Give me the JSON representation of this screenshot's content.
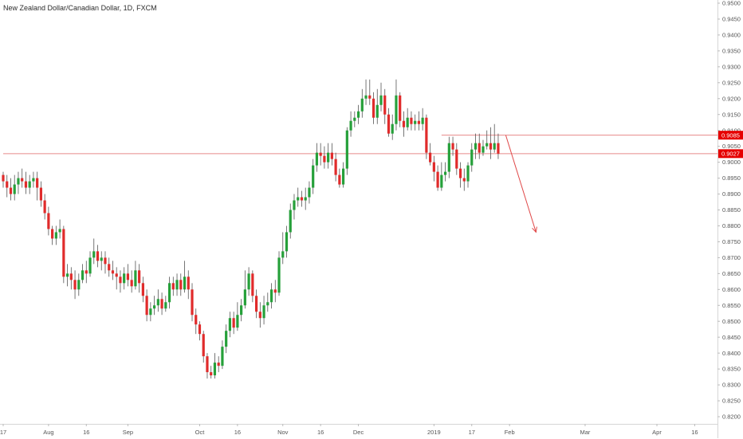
{
  "symbol": {
    "title": "New Zealand Dollar/Canadian Dollar, 1D, FXCM"
  },
  "colors": {
    "up": "#26a03a",
    "down": "#e02b2b",
    "wick": "#555555",
    "hline": "#e88a8a",
    "badge": "#e60000",
    "arrow": "#e04848"
  },
  "price_axis": {
    "labels": [
      "0.9500",
      "0.9450",
      "0.9400",
      "0.9350",
      "0.9300",
      "0.9250",
      "0.9200",
      "0.9150",
      "0.9100",
      "0.9050",
      "0.9000",
      "0.8950",
      "0.8900",
      "0.8850",
      "0.8800",
      "0.8750",
      "0.8700",
      "0.8650",
      "0.8600",
      "0.8550",
      "0.8500",
      "0.8450",
      "0.8400",
      "0.8350",
      "0.8300",
      "0.8250",
      "0.8200"
    ]
  },
  "time_axis": {
    "labels": [
      "17",
      "Aug",
      "16",
      "Sep",
      "Oct",
      "16",
      "Nov",
      "16",
      "Dec",
      "2019",
      "17",
      "Feb",
      "Mar",
      "Apr",
      "16"
    ]
  },
  "price_badges": {
    "resistance": "0.9085",
    "current": "0.9027"
  },
  "chart_data": {
    "type": "candlestick",
    "title": "New Zealand Dollar/Canadian Dollar, 1D, FXCM",
    "ylim": [
      0.818,
      0.952
    ],
    "grid": false,
    "time_ticks": [
      {
        "label": "17",
        "index": 0
      },
      {
        "label": "Aug",
        "index": 12
      },
      {
        "label": "16",
        "index": 22
      },
      {
        "label": "Sep",
        "index": 33
      },
      {
        "label": "Oct",
        "index": 52
      },
      {
        "label": "16",
        "index": 62
      },
      {
        "label": "Nov",
        "index": 74
      },
      {
        "label": "16",
        "index": 84
      },
      {
        "label": "Dec",
        "index": 94
      },
      {
        "label": "2019",
        "index": 114
      },
      {
        "label": "17",
        "index": 124
      },
      {
        "label": "Feb",
        "index": 134
      },
      {
        "label": "Mar",
        "index": 154
      },
      {
        "label": "Apr",
        "index": 173
      },
      {
        "label": "16",
        "index": 183
      }
    ],
    "candles": [
      [
        0.896,
        0.894,
        0.897,
        0.892
      ],
      [
        0.894,
        0.892,
        0.896,
        0.889
      ],
      [
        0.892,
        0.89,
        0.895,
        0.888
      ],
      [
        0.89,
        0.893,
        0.896,
        0.888
      ],
      [
        0.893,
        0.895,
        0.897,
        0.89
      ],
      [
        0.895,
        0.894,
        0.898,
        0.892
      ],
      [
        0.894,
        0.892,
        0.897,
        0.89
      ],
      [
        0.892,
        0.894,
        0.896,
        0.89
      ],
      [
        0.894,
        0.895,
        0.897,
        0.892
      ],
      [
        0.895,
        0.892,
        0.897,
        0.888
      ],
      [
        0.892,
        0.888,
        0.894,
        0.886
      ],
      [
        0.888,
        0.884,
        0.89,
        0.882
      ],
      [
        0.884,
        0.879,
        0.886,
        0.877
      ],
      [
        0.879,
        0.876,
        0.88,
        0.874
      ],
      [
        0.876,
        0.878,
        0.88,
        0.874
      ],
      [
        0.878,
        0.879,
        0.882,
        0.876
      ],
      [
        0.879,
        0.864,
        0.88,
        0.862
      ],
      [
        0.864,
        0.865,
        0.868,
        0.861
      ],
      [
        0.865,
        0.863,
        0.867,
        0.86
      ],
      [
        0.863,
        0.86,
        0.866,
        0.857
      ],
      [
        0.86,
        0.863,
        0.865,
        0.858
      ],
      [
        0.863,
        0.866,
        0.868,
        0.862
      ],
      [
        0.866,
        0.865,
        0.869,
        0.862
      ],
      [
        0.865,
        0.87,
        0.872,
        0.864
      ],
      [
        0.87,
        0.872,
        0.876,
        0.868
      ],
      [
        0.872,
        0.869,
        0.874,
        0.867
      ],
      [
        0.869,
        0.87,
        0.872,
        0.866
      ],
      [
        0.87,
        0.868,
        0.872,
        0.865
      ],
      [
        0.868,
        0.866,
        0.87,
        0.864
      ],
      [
        0.866,
        0.865,
        0.869,
        0.863
      ],
      [
        0.865,
        0.864,
        0.867,
        0.86
      ],
      [
        0.864,
        0.862,
        0.866,
        0.859
      ],
      [
        0.862,
        0.865,
        0.867,
        0.86
      ],
      [
        0.865,
        0.863,
        0.868,
        0.861
      ],
      [
        0.863,
        0.861,
        0.866,
        0.859
      ],
      [
        0.861,
        0.866,
        0.869,
        0.86
      ],
      [
        0.866,
        0.862,
        0.868,
        0.859
      ],
      [
        0.862,
        0.858,
        0.864,
        0.856
      ],
      [
        0.858,
        0.852,
        0.86,
        0.85
      ],
      [
        0.852,
        0.854,
        0.856,
        0.85
      ],
      [
        0.854,
        0.855,
        0.858,
        0.852
      ],
      [
        0.855,
        0.857,
        0.86,
        0.853
      ],
      [
        0.857,
        0.854,
        0.859,
        0.852
      ],
      [
        0.854,
        0.856,
        0.858,
        0.853
      ],
      [
        0.856,
        0.862,
        0.864,
        0.854
      ],
      [
        0.862,
        0.86,
        0.864,
        0.858
      ],
      [
        0.86,
        0.863,
        0.865,
        0.858
      ],
      [
        0.863,
        0.86,
        0.865,
        0.858
      ],
      [
        0.86,
        0.864,
        0.869,
        0.859
      ],
      [
        0.864,
        0.86,
        0.866,
        0.857
      ],
      [
        0.86,
        0.852,
        0.862,
        0.85
      ],
      [
        0.852,
        0.849,
        0.854,
        0.846
      ],
      [
        0.849,
        0.846,
        0.85,
        0.844
      ],
      [
        0.846,
        0.839,
        0.847,
        0.837
      ],
      [
        0.839,
        0.834,
        0.84,
        0.832
      ],
      [
        0.834,
        0.833,
        0.836,
        0.832
      ],
      [
        0.833,
        0.837,
        0.84,
        0.832
      ],
      [
        0.837,
        0.836,
        0.839,
        0.834
      ],
      [
        0.836,
        0.842,
        0.844,
        0.835
      ],
      [
        0.842,
        0.847,
        0.849,
        0.84
      ],
      [
        0.847,
        0.851,
        0.853,
        0.845
      ],
      [
        0.851,
        0.848,
        0.853,
        0.846
      ],
      [
        0.848,
        0.852,
        0.856,
        0.847
      ],
      [
        0.852,
        0.855,
        0.857,
        0.85
      ],
      [
        0.855,
        0.86,
        0.866,
        0.854
      ],
      [
        0.86,
        0.865,
        0.867,
        0.858
      ],
      [
        0.865,
        0.858,
        0.866,
        0.856
      ],
      [
        0.858,
        0.853,
        0.86,
        0.851
      ],
      [
        0.853,
        0.851,
        0.856,
        0.848
      ],
      [
        0.851,
        0.855,
        0.858,
        0.849
      ],
      [
        0.855,
        0.856,
        0.859,
        0.853
      ],
      [
        0.856,
        0.86,
        0.862,
        0.854
      ],
      [
        0.86,
        0.859,
        0.863,
        0.856
      ],
      [
        0.859,
        0.87,
        0.872,
        0.858
      ],
      [
        0.87,
        0.872,
        0.878,
        0.868
      ],
      [
        0.872,
        0.878,
        0.88,
        0.87
      ],
      [
        0.878,
        0.885,
        0.887,
        0.876
      ],
      [
        0.885,
        0.888,
        0.89,
        0.882
      ],
      [
        0.888,
        0.889,
        0.892,
        0.886
      ],
      [
        0.889,
        0.888,
        0.891,
        0.886
      ],
      [
        0.888,
        0.889,
        0.892,
        0.885
      ],
      [
        0.889,
        0.892,
        0.894,
        0.887
      ],
      [
        0.892,
        0.899,
        0.901,
        0.89
      ],
      [
        0.899,
        0.903,
        0.906,
        0.897
      ],
      [
        0.903,
        0.902,
        0.906,
        0.899
      ],
      [
        0.902,
        0.9,
        0.905,
        0.898
      ],
      [
        0.9,
        0.903,
        0.906,
        0.898
      ],
      [
        0.903,
        0.901,
        0.906,
        0.899
      ],
      [
        0.901,
        0.896,
        0.903,
        0.894
      ],
      [
        0.896,
        0.893,
        0.898,
        0.892
      ],
      [
        0.893,
        0.898,
        0.9,
        0.892
      ],
      [
        0.898,
        0.91,
        0.911,
        0.896
      ],
      [
        0.91,
        0.913,
        0.916,
        0.908
      ],
      [
        0.913,
        0.914,
        0.916,
        0.911
      ],
      [
        0.914,
        0.916,
        0.918,
        0.912
      ],
      [
        0.916,
        0.92,
        0.923,
        0.914
      ],
      [
        0.92,
        0.921,
        0.926,
        0.918
      ],
      [
        0.921,
        0.92,
        0.926,
        0.918
      ],
      [
        0.92,
        0.914,
        0.922,
        0.912
      ],
      [
        0.914,
        0.918,
        0.923,
        0.912
      ],
      [
        0.918,
        0.921,
        0.925,
        0.916
      ],
      [
        0.921,
        0.915,
        0.923,
        0.912
      ],
      [
        0.915,
        0.909,
        0.917,
        0.908
      ],
      [
        0.909,
        0.912,
        0.915,
        0.907
      ],
      [
        0.912,
        0.921,
        0.926,
        0.91
      ],
      [
        0.921,
        0.913,
        0.922,
        0.911
      ],
      [
        0.913,
        0.911,
        0.916,
        0.908
      ],
      [
        0.911,
        0.914,
        0.917,
        0.91
      ],
      [
        0.914,
        0.912,
        0.916,
        0.91
      ],
      [
        0.912,
        0.913,
        0.915,
        0.91
      ],
      [
        0.913,
        0.912,
        0.916,
        0.91
      ],
      [
        0.912,
        0.914,
        0.917,
        0.91
      ],
      [
        0.914,
        0.903,
        0.915,
        0.901
      ],
      [
        0.903,
        0.9,
        0.906,
        0.899
      ],
      [
        0.9,
        0.897,
        0.902,
        0.894
      ],
      [
        0.897,
        0.892,
        0.899,
        0.891
      ],
      [
        0.892,
        0.896,
        0.9,
        0.891
      ],
      [
        0.896,
        0.897,
        0.9,
        0.894
      ],
      [
        0.897,
        0.906,
        0.908,
        0.895
      ],
      [
        0.906,
        0.904,
        0.908,
        0.902
      ],
      [
        0.904,
        0.898,
        0.906,
        0.896
      ],
      [
        0.898,
        0.895,
        0.9,
        0.892
      ],
      [
        0.895,
        0.894,
        0.898,
        0.891
      ],
      [
        0.894,
        0.899,
        0.9,
        0.892
      ],
      [
        0.899,
        0.904,
        0.906,
        0.897
      ],
      [
        0.904,
        0.906,
        0.909,
        0.901
      ],
      [
        0.906,
        0.903,
        0.909,
        0.901
      ],
      [
        0.903,
        0.905,
        0.907,
        0.902
      ],
      [
        0.905,
        0.906,
        0.91,
        0.904
      ],
      [
        0.906,
        0.904,
        0.911,
        0.901
      ],
      [
        0.904,
        0.906,
        0.912,
        0.903
      ],
      [
        0.906,
        0.9027,
        0.909,
        0.901
      ]
    ],
    "horizontal_lines": [
      {
        "price": 0.9085,
        "from_index": 116
      },
      {
        "price": 0.9027,
        "from_index": 0
      }
    ],
    "arrow": {
      "from_index": 133,
      "from_price": 0.9085,
      "to_index": 141,
      "to_price": 0.878
    }
  }
}
